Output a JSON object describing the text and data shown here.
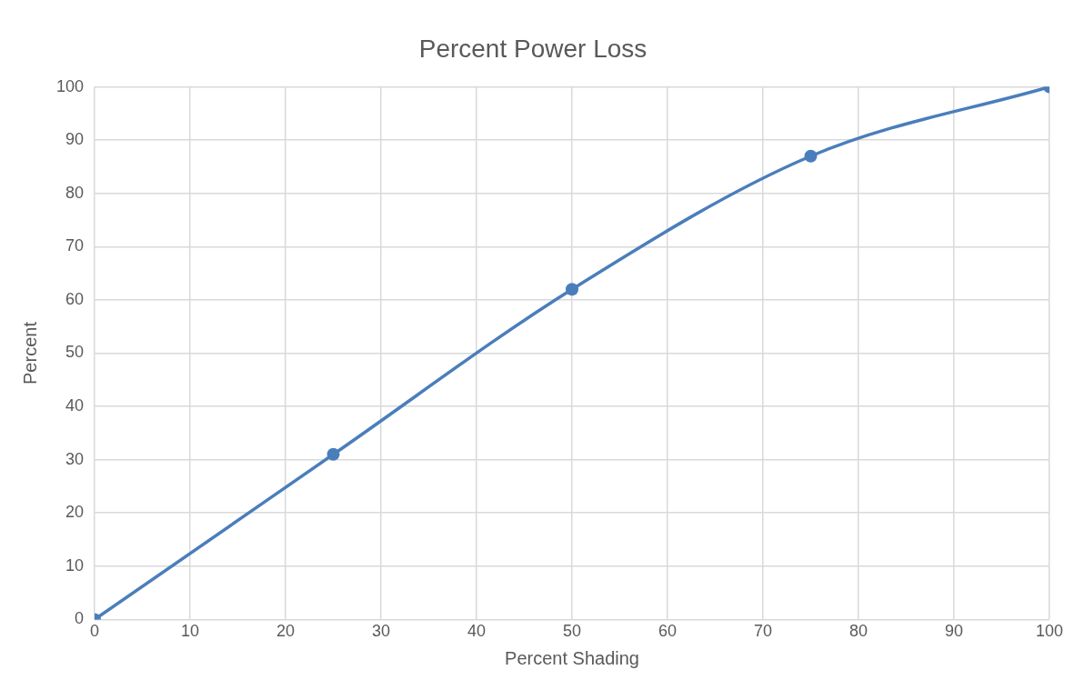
{
  "chart_data": {
    "type": "line",
    "title": "Percent Power Loss",
    "xlabel": "Percent Shading",
    "ylabel": "Percent",
    "x": [
      0,
      25,
      50,
      75,
      100
    ],
    "series": [
      {
        "color": "#4a7ebb",
        "values": [
          0,
          31,
          62,
          87,
          100
        ]
      }
    ],
    "xlim": [
      0,
      100
    ],
    "xticks": [
      0,
      10,
      20,
      30,
      40,
      50,
      60,
      70,
      80,
      90,
      100
    ],
    "ylim": [
      0,
      100
    ],
    "yticks": [
      0,
      10,
      20,
      30,
      40,
      50,
      60,
      70,
      80,
      90,
      100
    ],
    "grid": true,
    "legend": false,
    "marker": "circle",
    "line_style": "solid"
  }
}
